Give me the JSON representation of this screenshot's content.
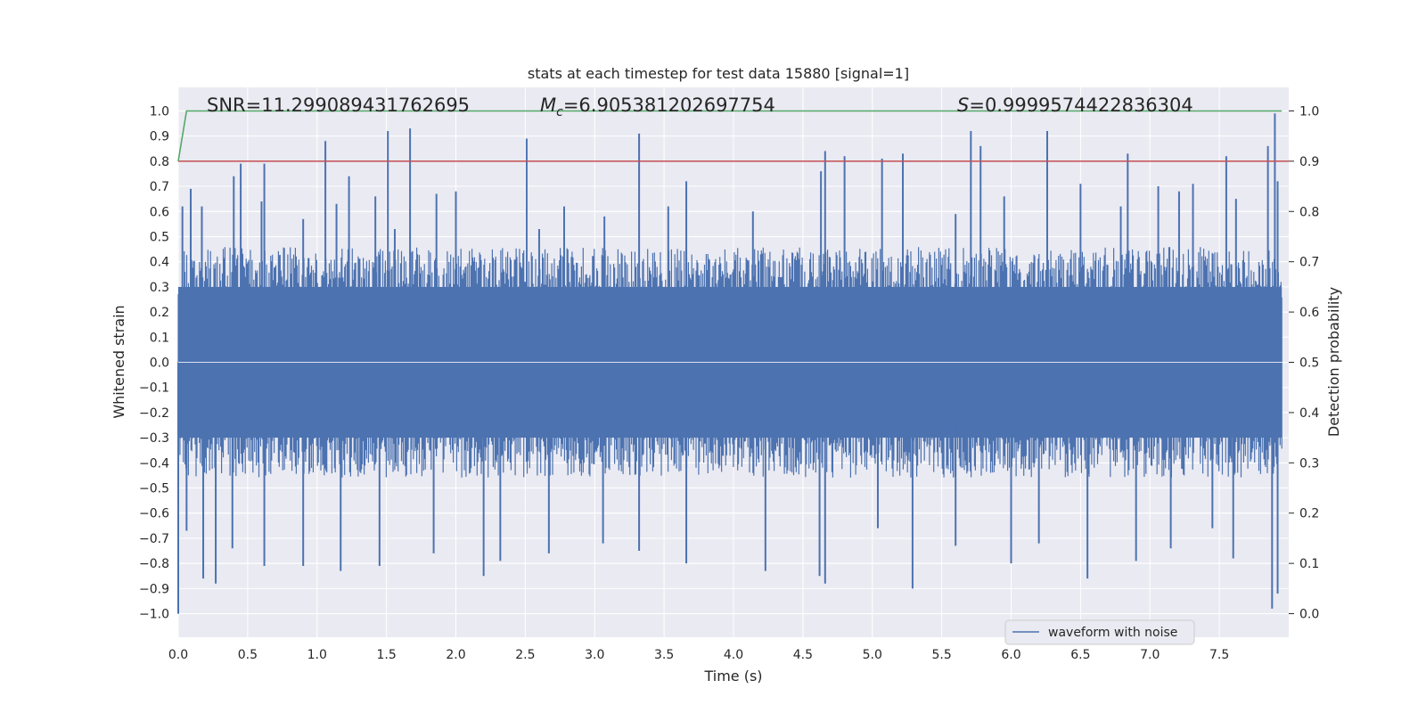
{
  "chart_data": {
    "type": "line",
    "title": "stats at each timestep for test data 15880 [signal=1]",
    "xlabel": "Time (s)",
    "ylabel": "Whitened strain",
    "y2label": "Detection probability",
    "xlim": [
      0.0,
      8.0
    ],
    "ylim": [
      -1.0937,
      1.0937
    ],
    "y2lim": [
      -0.0469,
      1.0469
    ],
    "xticks": [
      "0.0",
      "0.5",
      "1.0",
      "1.5",
      "2.0",
      "2.5",
      "3.0",
      "3.5",
      "4.0",
      "4.5",
      "5.0",
      "5.5",
      "6.0",
      "6.5",
      "7.0",
      "7.5"
    ],
    "yticks": [
      "1.0",
      "0.9",
      "0.8",
      "0.7",
      "0.6",
      "0.5",
      "0.4",
      "0.3",
      "0.2",
      "0.1",
      "0.0",
      "-0.1",
      "-0.2",
      "-0.3",
      "-0.4",
      "-0.5",
      "-0.6",
      "-0.7",
      "-0.8",
      "-0.9",
      "-1.0"
    ],
    "y2ticks": [
      "1.0",
      "0.9",
      "0.8",
      "0.7",
      "0.6",
      "0.5",
      "0.4",
      "0.3",
      "0.2",
      "0.1",
      "0.0"
    ],
    "annotations": {
      "snr": "SNR=11.299089431762695",
      "mc_symbol": "M",
      "mc_sub": "c",
      "mc_value": "=6.905381202697754",
      "s_symbol": "S",
      "s_value": "=0.9999574422836304"
    },
    "series": [
      {
        "name": "waveform with noise",
        "axis": "left",
        "color": "#4c72b0",
        "style": "dense noise",
        "x_range": [
          0.0,
          7.95
        ],
        "typical_envelope": [
          -0.45,
          0.45
        ],
        "peaks_positive": [
          [
            0.03,
            0.62
          ],
          [
            0.09,
            0.69
          ],
          [
            0.17,
            0.62
          ],
          [
            0.4,
            0.74
          ],
          [
            0.45,
            0.79
          ],
          [
            0.6,
            0.64
          ],
          [
            0.62,
            0.79
          ],
          [
            0.9,
            0.57
          ],
          [
            1.06,
            0.88
          ],
          [
            1.14,
            0.63
          ],
          [
            1.23,
            0.74
          ],
          [
            1.42,
            0.66
          ],
          [
            1.51,
            0.92
          ],
          [
            1.56,
            0.53
          ],
          [
            1.67,
            0.93
          ],
          [
            1.86,
            0.67
          ],
          [
            2.0,
            0.68
          ],
          [
            2.51,
            0.89
          ],
          [
            2.6,
            0.53
          ],
          [
            2.78,
            0.62
          ],
          [
            3.07,
            0.58
          ],
          [
            3.32,
            0.91
          ],
          [
            3.53,
            0.62
          ],
          [
            3.66,
            0.72
          ],
          [
            4.14,
            0.6
          ],
          [
            4.63,
            0.76
          ],
          [
            4.66,
            0.84
          ],
          [
            4.8,
            0.82
          ],
          [
            5.07,
            0.81
          ],
          [
            5.22,
            0.83
          ],
          [
            5.6,
            0.59
          ],
          [
            5.71,
            0.92
          ],
          [
            5.78,
            0.86
          ],
          [
            5.95,
            0.66
          ],
          [
            6.26,
            0.92
          ],
          [
            6.5,
            0.71
          ],
          [
            6.79,
            0.62
          ],
          [
            6.84,
            0.83
          ],
          [
            7.06,
            0.7
          ],
          [
            7.21,
            0.68
          ],
          [
            7.31,
            0.71
          ],
          [
            7.55,
            0.82
          ],
          [
            7.62,
            0.65
          ],
          [
            7.85,
            0.86
          ],
          [
            7.9,
            0.99
          ],
          [
            7.92,
            0.72
          ]
        ],
        "peaks_negative": [
          [
            0.0,
            -1.0
          ],
          [
            0.06,
            -0.67
          ],
          [
            0.18,
            -0.86
          ],
          [
            0.27,
            -0.88
          ],
          [
            0.39,
            -0.74
          ],
          [
            0.62,
            -0.81
          ],
          [
            0.9,
            -0.81
          ],
          [
            1.17,
            -0.83
          ],
          [
            1.45,
            -0.81
          ],
          [
            1.84,
            -0.76
          ],
          [
            2.2,
            -0.85
          ],
          [
            2.32,
            -0.79
          ],
          [
            2.67,
            -0.76
          ],
          [
            3.06,
            -0.72
          ],
          [
            3.32,
            -0.75
          ],
          [
            3.66,
            -0.8
          ],
          [
            4.23,
            -0.83
          ],
          [
            4.62,
            -0.85
          ],
          [
            4.66,
            -0.88
          ],
          [
            5.04,
            -0.66
          ],
          [
            5.29,
            -0.9
          ],
          [
            5.6,
            -0.73
          ],
          [
            6.0,
            -0.8
          ],
          [
            6.2,
            -0.72
          ],
          [
            6.55,
            -0.86
          ],
          [
            6.9,
            -0.79
          ],
          [
            7.15,
            -0.74
          ],
          [
            7.45,
            -0.66
          ],
          [
            7.6,
            -0.78
          ],
          [
            7.88,
            -0.98
          ],
          [
            7.92,
            -0.92
          ]
        ]
      },
      {
        "name": "detection probability",
        "axis": "right",
        "color": "#55a868",
        "x": [
          0.0,
          0.06,
          7.95
        ],
        "y": [
          0.9,
          1.0,
          1.0
        ]
      },
      {
        "name": "threshold",
        "axis": "right",
        "color": "#c44e52",
        "x": [
          0.0,
          8.0
        ],
        "y": [
          0.9,
          0.9
        ]
      }
    ],
    "legend": {
      "position": "bottom-right",
      "entries": [
        "waveform with noise"
      ]
    }
  }
}
